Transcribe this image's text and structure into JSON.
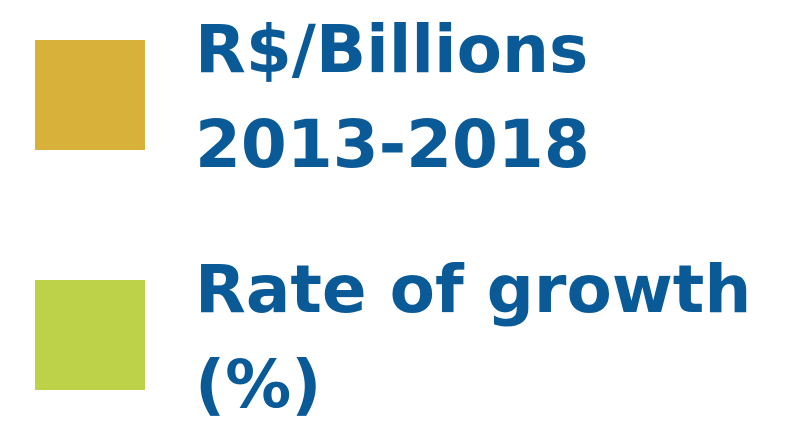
{
  "legend": {
    "items": [
      {
        "label_lines": [
          "R$/Billions",
          "2013-2018"
        ],
        "color": "#d8b13a"
      },
      {
        "label_lines": [
          "Rate of growth",
          "(%)"
        ],
        "color": "#bdd248"
      }
    ]
  }
}
